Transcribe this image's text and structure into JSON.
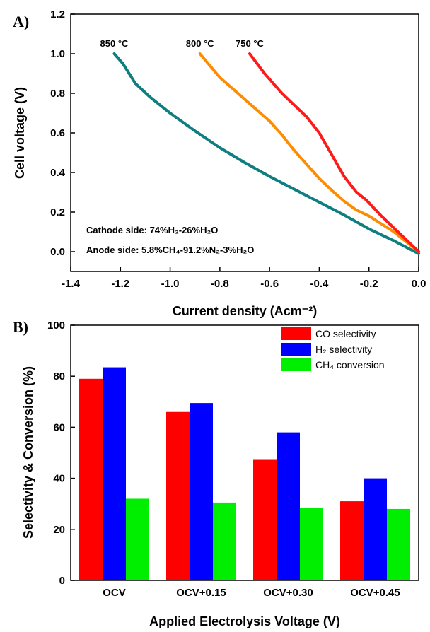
{
  "chart_data": [
    {
      "panel": "A)",
      "type": "line",
      "xlabel": "Current density (Acm⁻²)",
      "ylabel": "Cell voltage (V)",
      "xlim": [
        -1.4,
        0.0
      ],
      "ylim": [
        -0.1,
        1.2
      ],
      "xticks": [
        "-1.4",
        "-1.2",
        "-1.0",
        "-0.8",
        "-0.6",
        "-0.4",
        "-0.2",
        "0.0"
      ],
      "yticks": [
        "0.0",
        "0.2",
        "0.4",
        "0.6",
        "0.8",
        "1.0",
        "1.2"
      ],
      "annotations": [
        "Cathode side: 74%H₂-26%H₂O",
        "Anode side: 5.8%CH₄-91.2%N₂-3%H₂O"
      ],
      "series": [
        {
          "name": "850 °C",
          "color": "#0e7e80",
          "x": [
            -1.225,
            -1.19,
            -1.14,
            -1.08,
            -1.0,
            -0.9,
            -0.8,
            -0.7,
            -0.6,
            -0.5,
            -0.4,
            -0.3,
            -0.2,
            -0.1,
            0.0
          ],
          "y": [
            1.0,
            0.95,
            0.85,
            0.78,
            0.7,
            0.61,
            0.525,
            0.45,
            0.38,
            0.315,
            0.25,
            0.185,
            0.115,
            0.055,
            -0.01
          ]
        },
        {
          "name": "800 °C",
          "color": "#ff8c00",
          "x": [
            -0.88,
            -0.8,
            -0.7,
            -0.6,
            -0.55,
            -0.5,
            -0.45,
            -0.4,
            -0.35,
            -0.3,
            -0.25,
            -0.2,
            -0.1,
            0.0
          ],
          "y": [
            1.0,
            0.88,
            0.77,
            0.66,
            0.59,
            0.51,
            0.44,
            0.37,
            0.31,
            0.255,
            0.21,
            0.18,
            0.1,
            0.0
          ]
        },
        {
          "name": "750 °C",
          "color": "#ff1a1a",
          "x": [
            -0.68,
            -0.62,
            -0.55,
            -0.5,
            -0.45,
            -0.4,
            -0.35,
            -0.3,
            -0.25,
            -0.21,
            -0.15,
            -0.1,
            -0.05,
            0.0
          ],
          "y": [
            1.0,
            0.9,
            0.8,
            0.74,
            0.68,
            0.6,
            0.49,
            0.38,
            0.3,
            0.26,
            0.18,
            0.12,
            0.06,
            0.0
          ]
        }
      ]
    },
    {
      "panel": "B)",
      "type": "bar",
      "xlabel": "Applied Electrolysis Voltage (V)",
      "ylabel": "Selectivity & Conversion (%)",
      "ylim": [
        0,
        100
      ],
      "yticks": [
        "0",
        "20",
        "40",
        "60",
        "80",
        "100"
      ],
      "categories": [
        "OCV",
        "OCV+0.15",
        "OCV+0.30",
        "OCV+0.45"
      ],
      "legend_position": "top-right",
      "series": [
        {
          "name": "CO selectivity",
          "color": "#ff0000",
          "values": [
            79,
            66,
            47.5,
            31
          ]
        },
        {
          "name": "H₂ selectivity",
          "color": "#0000ff",
          "values": [
            83.5,
            69.5,
            58,
            40
          ]
        },
        {
          "name": "CH₄ conversion",
          "color": "#00ee00",
          "values": [
            32,
            30.5,
            28.5,
            28
          ]
        }
      ]
    }
  ]
}
